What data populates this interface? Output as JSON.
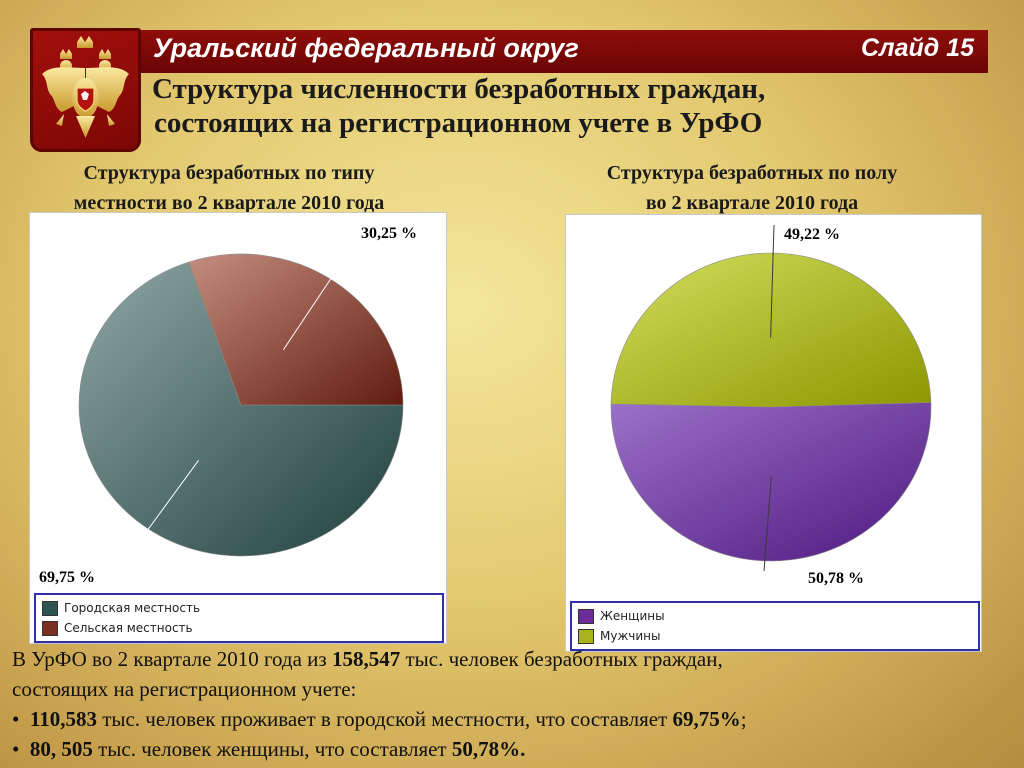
{
  "header": {
    "region_title": "Уральский федеральный округ",
    "slide_label": "Слайд 15"
  },
  "main_title": {
    "line1": "Структура численности безработных граждан,",
    "line2": "состоящих на регистрационном учете в УрФО"
  },
  "colors": {
    "header_bg": "#7a0806",
    "urban": "#2f5553",
    "rural": "#7a2f22",
    "women": "#6c2c9a",
    "men": "#a9b41a"
  },
  "chart_data": [
    {
      "type": "pie",
      "title_line1": "Структура безработных по типу",
      "title_line2": "местности во 2 квартале 2010 года",
      "categories": [
        "Городская местность",
        "Сельская местность"
      ],
      "values": [
        69.75,
        30.25
      ],
      "data_labels": [
        "69,75 %",
        "30,25 %"
      ],
      "legend_placement": "bottom"
    },
    {
      "type": "pie",
      "title_line1": "Структура безработных по полу",
      "title_line2": "во 2 квартале 2010 года",
      "categories": [
        "Женщины",
        "Мужчины"
      ],
      "values": [
        50.78,
        49.22
      ],
      "data_labels": [
        "50,78 %",
        "49,22 %"
      ],
      "legend_placement": "bottom"
    }
  ],
  "summary": {
    "intro_a": "В УрФО во 2 квартале 2010 года из ",
    "total": "158,547",
    "intro_b": " тыс. человек безработных граждан,",
    "intro_c": "состоящих на регистрационном учете:",
    "bullet": "•",
    "urban_value": "110,583",
    "urban_text": " тыс. человек проживает в городской местности, что составляет ",
    "urban_pct": "69,75%",
    "urban_end": ";",
    "women_value": "80, 505",
    "women_text": " тыс. человек женщины, что составляет ",
    "women_pct": "50,78%",
    "women_end": "."
  }
}
